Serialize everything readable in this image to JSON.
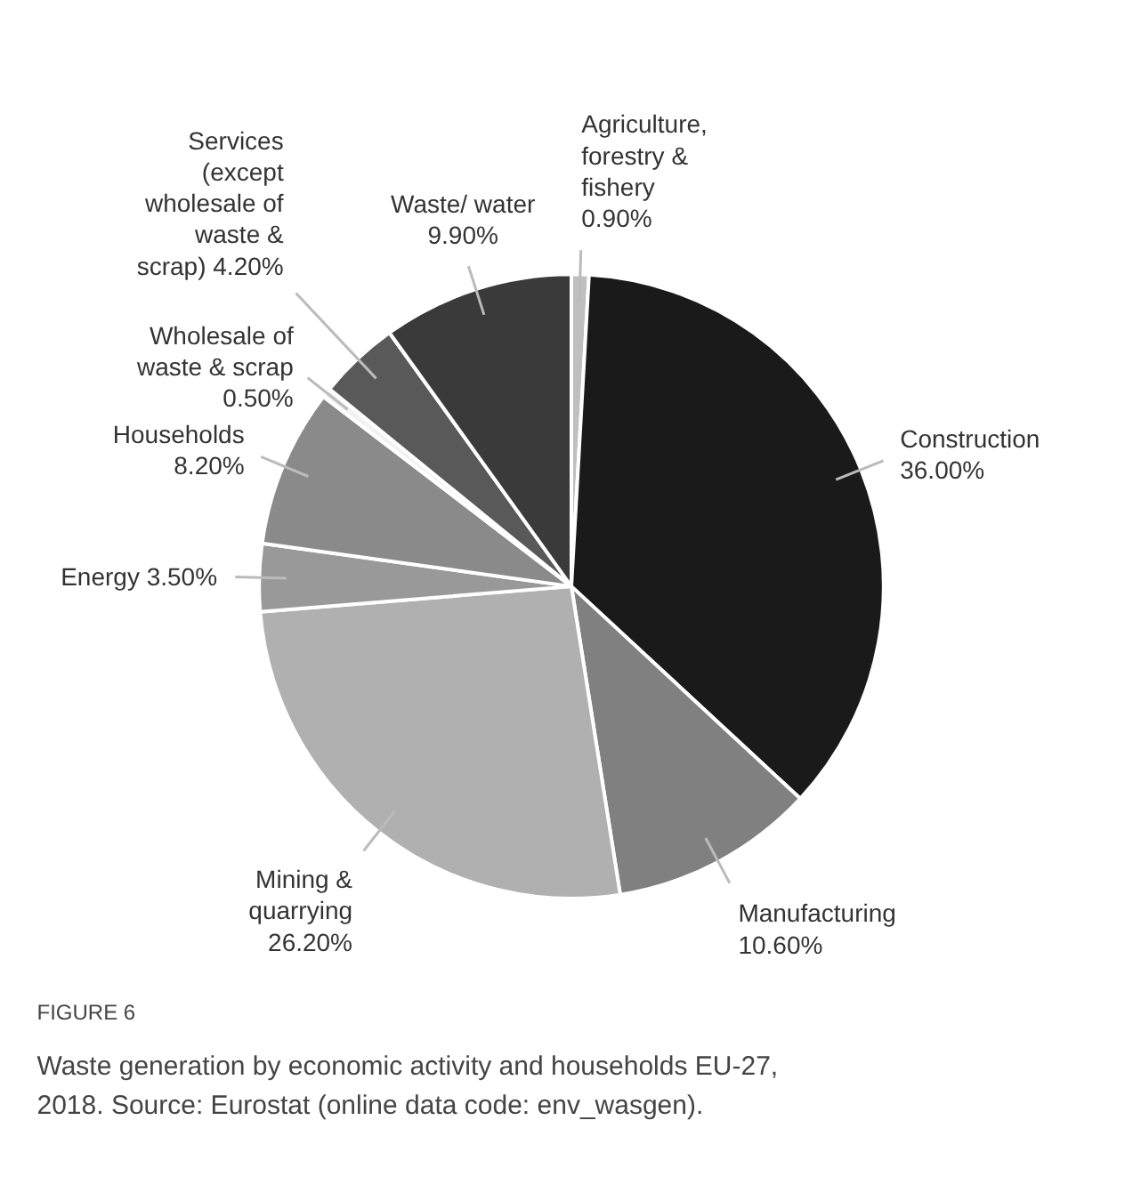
{
  "chart_data": {
    "type": "pie",
    "title": "FIGURE 6",
    "subtitle": "Waste generation by economic activity and households EU-27, 2018. Source: Eurostat (online data code: env_wasgen).",
    "categories": [
      "Agriculture, forestry & fishery",
      "Construction",
      "Manufacturing",
      "Mining & quarrying",
      "Energy",
      "Households",
      "Wholesale of waste & scrap",
      "Services (except wholesale of waste & scrap)",
      "Waste/ water"
    ],
    "values": [
      0.9,
      36.0,
      10.6,
      26.2,
      3.5,
      8.2,
      0.5,
      4.2,
      9.9
    ],
    "value_labels": [
      "0.90%",
      "36.00%",
      "10.60%",
      "26.20%",
      "3.50%",
      "8.20%",
      "0.50%",
      "4.20%",
      "9.90%"
    ],
    "colors": [
      "#bfbfbf",
      "#1a1a1a",
      "#808080",
      "#b0b0b0",
      "#999999",
      "#8a8a8a",
      "#f2f2f2",
      "#595959",
      "#3a3a3a"
    ],
    "legend": false
  }
}
